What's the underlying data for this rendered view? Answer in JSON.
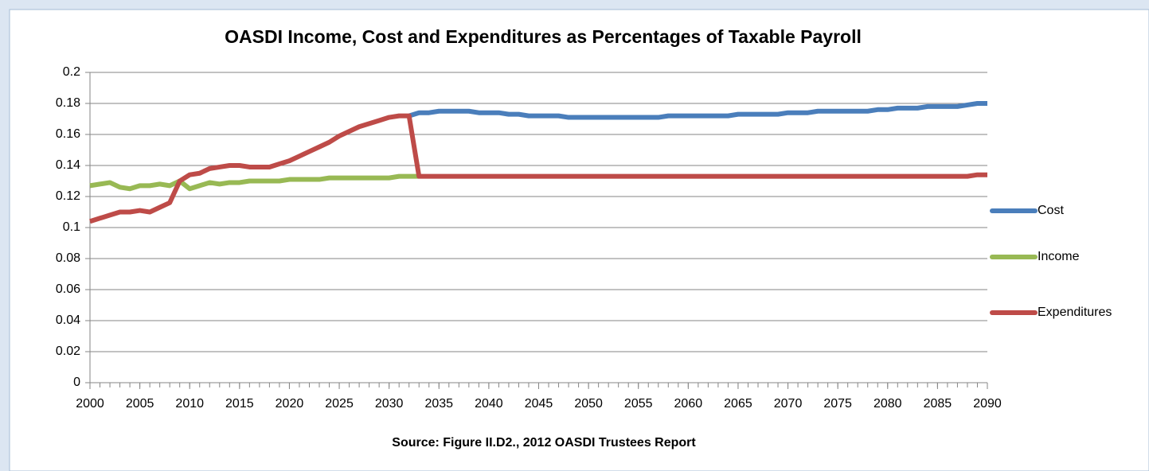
{
  "chart_data": {
    "type": "line",
    "title": "OASDI Income, Cost and Expenditures as Percentages of Taxable Payroll",
    "annotation": "Source: Figure II.D2., 2012 OASDI Trustees Report",
    "x": [
      2000,
      2001,
      2002,
      2003,
      2004,
      2005,
      2006,
      2007,
      2008,
      2009,
      2010,
      2011,
      2012,
      2013,
      2014,
      2015,
      2016,
      2017,
      2018,
      2019,
      2020,
      2021,
      2022,
      2023,
      2024,
      2025,
      2026,
      2027,
      2028,
      2029,
      2030,
      2031,
      2032,
      2033,
      2034,
      2035,
      2036,
      2037,
      2038,
      2039,
      2040,
      2041,
      2042,
      2043,
      2044,
      2045,
      2046,
      2047,
      2048,
      2049,
      2050,
      2051,
      2052,
      2053,
      2054,
      2055,
      2056,
      2057,
      2058,
      2059,
      2060,
      2061,
      2062,
      2063,
      2064,
      2065,
      2066,
      2067,
      2068,
      2069,
      2070,
      2071,
      2072,
      2073,
      2074,
      2075,
      2076,
      2077,
      2078,
      2079,
      2080,
      2081,
      2082,
      2083,
      2084,
      2085,
      2086,
      2087,
      2088,
      2089,
      2090
    ],
    "series": [
      {
        "name": "Cost",
        "color": "#4a7ebb",
        "values": [
          null,
          null,
          null,
          null,
          null,
          null,
          null,
          null,
          null,
          null,
          null,
          null,
          null,
          null,
          null,
          null,
          null,
          null,
          null,
          null,
          null,
          null,
          null,
          null,
          null,
          null,
          null,
          null,
          null,
          null,
          null,
          null,
          0.172,
          0.174,
          0.174,
          0.175,
          0.175,
          0.175,
          0.175,
          0.174,
          0.174,
          0.174,
          0.173,
          0.173,
          0.172,
          0.172,
          0.172,
          0.172,
          0.171,
          0.171,
          0.171,
          0.171,
          0.171,
          0.171,
          0.171,
          0.171,
          0.171,
          0.171,
          0.172,
          0.172,
          0.172,
          0.172,
          0.172,
          0.172,
          0.172,
          0.173,
          0.173,
          0.173,
          0.173,
          0.173,
          0.174,
          0.174,
          0.174,
          0.175,
          0.175,
          0.175,
          0.175,
          0.175,
          0.175,
          0.176,
          0.176,
          0.177,
          0.177,
          0.177,
          0.178,
          0.178,
          0.178,
          0.178,
          0.179,
          0.18,
          0.18
        ]
      },
      {
        "name": "Income",
        "color": "#98b954",
        "values": [
          0.127,
          0.128,
          0.129,
          0.126,
          0.125,
          0.127,
          0.127,
          0.128,
          0.127,
          0.13,
          0.125,
          0.127,
          0.129,
          0.128,
          0.129,
          0.129,
          0.13,
          0.13,
          0.13,
          0.13,
          0.131,
          0.131,
          0.131,
          0.131,
          0.132,
          0.132,
          0.132,
          0.132,
          0.132,
          0.132,
          0.132,
          0.133,
          0.133,
          0.133,
          null,
          null,
          null,
          null,
          null,
          null,
          null,
          null,
          null,
          null,
          null,
          null,
          null,
          null,
          null,
          null,
          null,
          null,
          null,
          null,
          null,
          null,
          null,
          null,
          null,
          null,
          null,
          null,
          null,
          null,
          null,
          null,
          null,
          null,
          null,
          null,
          null,
          null,
          null,
          null,
          null,
          null,
          null,
          null,
          null,
          null,
          null,
          null,
          null,
          null,
          null,
          null,
          null,
          null,
          null,
          null,
          null
        ]
      },
      {
        "name": "Expenditures",
        "color": "#be4b48",
        "values": [
          0.104,
          0.106,
          0.108,
          0.11,
          0.11,
          0.111,
          0.11,
          0.113,
          0.116,
          0.13,
          0.134,
          0.135,
          0.138,
          0.139,
          0.14,
          0.14,
          0.139,
          0.139,
          0.139,
          0.141,
          0.143,
          0.146,
          0.149,
          0.152,
          0.155,
          0.159,
          0.162,
          0.165,
          0.167,
          0.169,
          0.171,
          0.172,
          0.172,
          0.133,
          0.133,
          0.133,
          0.133,
          0.133,
          0.133,
          0.133,
          0.133,
          0.133,
          0.133,
          0.133,
          0.133,
          0.133,
          0.133,
          0.133,
          0.133,
          0.133,
          0.133,
          0.133,
          0.133,
          0.133,
          0.133,
          0.133,
          0.133,
          0.133,
          0.133,
          0.133,
          0.133,
          0.133,
          0.133,
          0.133,
          0.133,
          0.133,
          0.133,
          0.133,
          0.133,
          0.133,
          0.133,
          0.133,
          0.133,
          0.133,
          0.133,
          0.133,
          0.133,
          0.133,
          0.133,
          0.133,
          0.133,
          0.133,
          0.133,
          0.133,
          0.133,
          0.133,
          0.133,
          0.133,
          0.133,
          0.134,
          0.134
        ]
      }
    ],
    "xlim": [
      2000,
      2090
    ],
    "xticks": [
      2000,
      2005,
      2010,
      2015,
      2020,
      2025,
      2030,
      2035,
      2040,
      2045,
      2050,
      2055,
      2060,
      2065,
      2070,
      2075,
      2080,
      2085,
      2090
    ],
    "ylim": [
      0,
      0.2
    ],
    "yticks": [
      0,
      0.02,
      0.04,
      0.06,
      0.08,
      0.1,
      0.12,
      0.14,
      0.16,
      0.18,
      0.2
    ],
    "grid": true,
    "legend": "right"
  }
}
